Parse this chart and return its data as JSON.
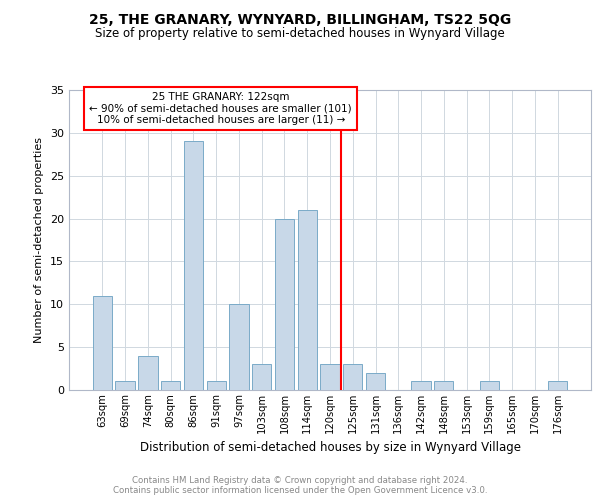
{
  "title1": "25, THE GRANARY, WYNYARD, BILLINGHAM, TS22 5QG",
  "title2": "Size of property relative to semi-detached houses in Wynyard Village",
  "xlabel": "Distribution of semi-detached houses by size in Wynyard Village",
  "ylabel": "Number of semi-detached properties",
  "categories": [
    "63sqm",
    "69sqm",
    "74sqm",
    "80sqm",
    "86sqm",
    "91sqm",
    "97sqm",
    "103sqm",
    "108sqm",
    "114sqm",
    "120sqm",
    "125sqm",
    "131sqm",
    "136sqm",
    "142sqm",
    "148sqm",
    "153sqm",
    "159sqm",
    "165sqm",
    "170sqm",
    "176sqm"
  ],
  "values": [
    11,
    1,
    4,
    1,
    29,
    1,
    10,
    3,
    20,
    21,
    3,
    3,
    2,
    0,
    1,
    1,
    0,
    1,
    0,
    0,
    1
  ],
  "bar_color": "#c8d8e8",
  "bar_edge_color": "#7aaac8",
  "ylim": [
    0,
    35
  ],
  "yticks": [
    0,
    5,
    10,
    15,
    20,
    25,
    30,
    35
  ],
  "red_line_x": 10.5,
  "annotation_title": "25 THE GRANARY: 122sqm",
  "annotation_line1": "← 90% of semi-detached houses are smaller (101)",
  "annotation_line2": "10% of semi-detached houses are larger (11) →",
  "footer1": "Contains HM Land Registry data © Crown copyright and database right 2024.",
  "footer2": "Contains public sector information licensed under the Open Government Licence v3.0.",
  "background_color": "#ffffff",
  "grid_color": "#d0d8e0"
}
